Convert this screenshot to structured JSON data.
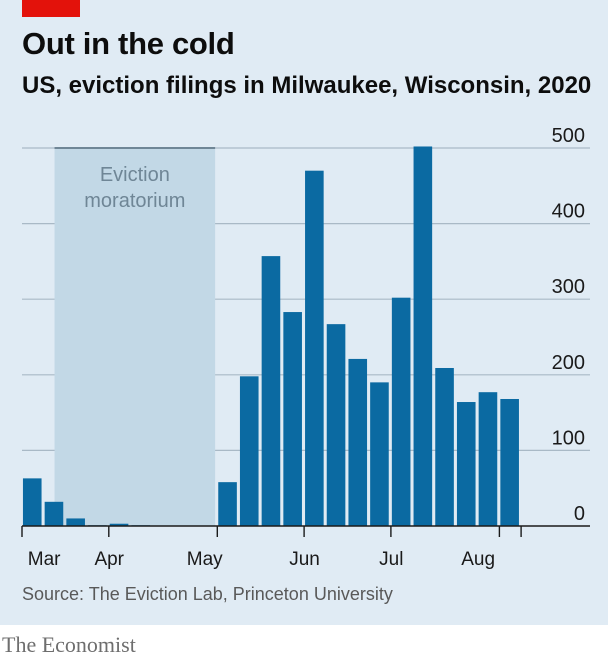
{
  "header": {
    "title": "Out in the cold",
    "subtitle": "US, eviction filings in Milwaukee, Wisconsin, 2020"
  },
  "footer": {
    "source": "Source: The Eviction Lab, Princeton University",
    "brand": "The Economist"
  },
  "colors": {
    "panel": "#e0ebf4",
    "bar": "#0b6aa2",
    "shade": "#c2d8e6",
    "accent": "#e3120b"
  },
  "chart_data": {
    "type": "bar",
    "title": "Out in the cold",
    "subtitle": "US, eviction filings in Milwaukee, Wisconsin, 2020",
    "xlabel": "",
    "ylabel": "",
    "ylim": [
      0,
      500
    ],
    "yticks": [
      0,
      100,
      200,
      300,
      400,
      500
    ],
    "grid": true,
    "y_axis_side": "right",
    "bar_start_week": 0,
    "weeks_total": 23,
    "values": [
      63,
      32,
      10,
      1,
      3,
      1,
      0,
      0,
      0,
      58,
      198,
      357,
      283,
      470,
      267,
      221,
      190,
      302,
      502,
      209,
      164,
      177,
      168
    ],
    "months": [
      {
        "label": "Mar",
        "tick_week": 0,
        "label_week": 1
      },
      {
        "label": "Apr",
        "tick_week": 4,
        "label_week": 4
      },
      {
        "label": "May",
        "tick_week": 9,
        "label_week": 8.4
      },
      {
        "label": "Jun",
        "tick_week": 13,
        "label_week": 13
      },
      {
        "label": "Jul",
        "tick_week": 17,
        "label_week": 17
      },
      {
        "label": "Aug",
        "tick_week": 22,
        "label_week": 21
      },
      {
        "label": "",
        "tick_week": 23,
        "label_week": 23
      }
    ],
    "annotation": {
      "label_line1": "Eviction",
      "label_line2": "moratorium",
      "start_week": 1.5,
      "end_week": 8.9
    }
  }
}
